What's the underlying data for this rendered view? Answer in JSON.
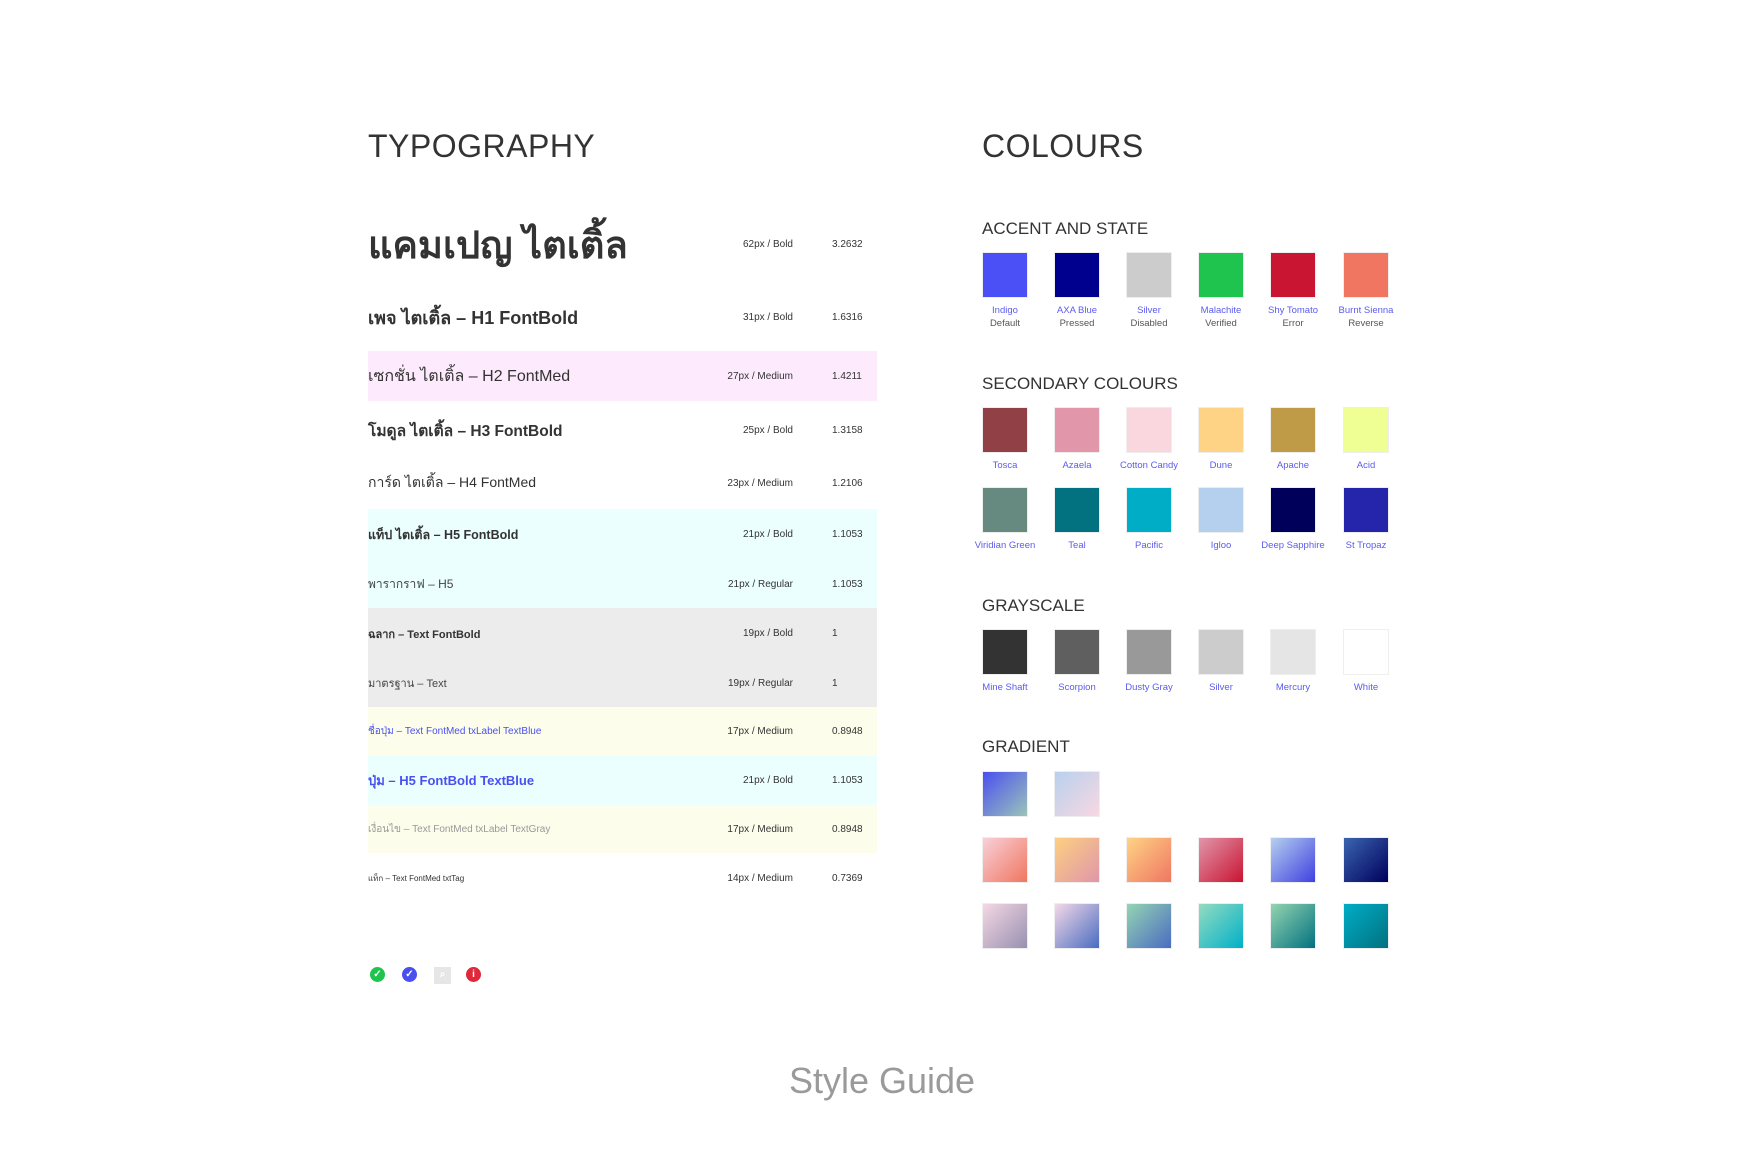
{
  "typography": {
    "title": "TYPOGRAPHY",
    "rows": [
      {
        "label": "แคมเปญ ไตเติ้ล",
        "spec": "62px / Bold",
        "ratio": "3.2632",
        "color": "#333333",
        "bg": ""
      },
      {
        "label": "เพจ ไตเติ้ล – H1 FontBold",
        "spec": "31px / Bold",
        "ratio": "1.6316",
        "color": "#333333",
        "bg": ""
      },
      {
        "label": "เซกชั่น ไตเติ้ล – H2 FontMed",
        "spec": "27px / Medium",
        "ratio": "1.4211",
        "color": "#333333",
        "bg": "#fdebfd"
      },
      {
        "label": "โมดูล ไตเติ้ล – H3 FontBold",
        "spec": "25px / Bold",
        "ratio": "1.3158",
        "color": "#333333",
        "bg": ""
      },
      {
        "label": "การ์ด ไตเติ้ล – H4 FontMed",
        "spec": "23px / Medium",
        "ratio": "1.2106",
        "color": "#333333",
        "bg": ""
      },
      {
        "label": "แท็ป ไตเติ้ล – H5 FontBold",
        "spec": "21px / Bold",
        "ratio": "1.1053",
        "color": "#333333",
        "bg": "#ebffff"
      },
      {
        "label": "พารากราฟ – H5",
        "spec": "21px / Regular",
        "ratio": "1.1053",
        "color": "#444444",
        "bg": "#ebffff"
      },
      {
        "label": "ฉลาก – Text FontBold",
        "spec": "19px / Bold",
        "ratio": "1",
        "color": "#333333",
        "bg": "#ececec"
      },
      {
        "label": "มาตรฐาน – Text",
        "spec": "19px / Regular",
        "ratio": "1",
        "color": "#444444",
        "bg": "#ececec"
      },
      {
        "label": "ชื่อปุ่ม – Text FontMed txLabel TextBlue",
        "spec": "17px / Medium",
        "ratio": "0.8948",
        "color": "#4a50f0",
        "bg": "#fdfdec"
      },
      {
        "label": "ปุ่ม – H5 FontBold TextBlue",
        "spec": "21px / Bold",
        "ratio": "1.1053",
        "color": "#4a50f0",
        "bg": "#ebffff"
      },
      {
        "label": "เงื่อนไข – Text FontMed txLabel TextGray",
        "spec": "17px / Medium",
        "ratio": "0.8948",
        "color": "#999999",
        "bg": "#fdfdec"
      },
      {
        "label": "แท็ก – Text FontMed txtTag",
        "spec": "14px / Medium",
        "ratio": "0.7369",
        "color": "#333333",
        "bg": ""
      }
    ],
    "icons": [
      {
        "name": "check-circle-green-icon",
        "color": "#1ec44e",
        "glyph": "✓"
      },
      {
        "name": "check-circle-blue-icon",
        "color": "#4a50f0",
        "glyph": "✓"
      },
      {
        "name": "search-icon",
        "color": "#e6e6e6",
        "glyph": "⌕"
      },
      {
        "name": "info-red-icon",
        "color": "#e0283a",
        "glyph": "i"
      }
    ]
  },
  "colours": {
    "title": "COLOURS",
    "accent": {
      "title": "ACCENT AND STATE",
      "items": [
        {
          "name": "Indigo",
          "sub": "Default",
          "hex": "#4a50f6"
        },
        {
          "name": "AXA Blue",
          "sub": "Pressed",
          "hex": "#00008f"
        },
        {
          "name": "Silver",
          "sub": "Disabled",
          "hex": "#cccccc"
        },
        {
          "name": "Malachite",
          "sub": "Verified",
          "hex": "#1ec44e"
        },
        {
          "name": "Shy Tomato",
          "sub": "Error",
          "hex": "#c91432"
        },
        {
          "name": "Burnt Sienna",
          "sub": "Reverse",
          "hex": "#f07662"
        }
      ]
    },
    "secondary": {
      "title": "SECONDARY COLOURS",
      "items": [
        {
          "name": "Tosca",
          "hex": "#914146"
        },
        {
          "name": "Azaela",
          "hex": "#e196aa"
        },
        {
          "name": "Cotton Candy",
          "hex": "#fad6de"
        },
        {
          "name": "Dune",
          "hex": "#fed385"
        },
        {
          "name": "Apache",
          "hex": "#bf9b48"
        },
        {
          "name": "Acid",
          "hex": "#f0ff93"
        },
        {
          "name": "Viridian Green",
          "hex": "#668980"
        },
        {
          "name": "Teal",
          "hex": "#027180"
        },
        {
          "name": "Pacific",
          "hex": "#00adc6"
        },
        {
          "name": "Igloo",
          "hex": "#b5d0ee"
        },
        {
          "name": "Deep Sapphire",
          "hex": "#00005b"
        },
        {
          "name": "St Tropaz",
          "hex": "#2425aa"
        }
      ]
    },
    "grayscale": {
      "title": "GRAYSCALE",
      "items": [
        {
          "name": "Mine Shaft",
          "hex": "#333333"
        },
        {
          "name": "Scorpion",
          "hex": "#5f5f5f"
        },
        {
          "name": "Dusty Gray",
          "hex": "#999999"
        },
        {
          "name": "Silver",
          "hex": "#cccccc"
        },
        {
          "name": "Mercury",
          "hex": "#e5e5e5"
        },
        {
          "name": "White",
          "hex": "#ffffff"
        }
      ]
    },
    "gradient": {
      "title": "GRADIENT",
      "rows": [
        [
          [
            "#4a50f0",
            "#9bc4b8"
          ],
          [
            "#b8d0ee",
            "#f8d8e2"
          ]
        ],
        [
          [
            "#f8d0d8",
            "#f07660"
          ],
          [
            "#fcd080",
            "#e096aa"
          ],
          [
            "#fed385",
            "#f07662"
          ],
          [
            "#e096aa",
            "#c91432"
          ],
          [
            "#b5d0ee",
            "#4040e0"
          ],
          [
            "#3a64b0",
            "#00005b"
          ]
        ],
        [
          [
            "#f4d8e4",
            "#9890b0"
          ],
          [
            "#f4d8e8",
            "#4a6cc0"
          ],
          [
            "#94d4b4",
            "#4a6cc0"
          ],
          [
            "#94dcc0",
            "#00b0c8"
          ],
          [
            "#94d4b0",
            "#027180"
          ],
          [
            "#00adc6",
            "#027180"
          ]
        ]
      ]
    }
  },
  "footer": {
    "title": "Style Guide"
  }
}
